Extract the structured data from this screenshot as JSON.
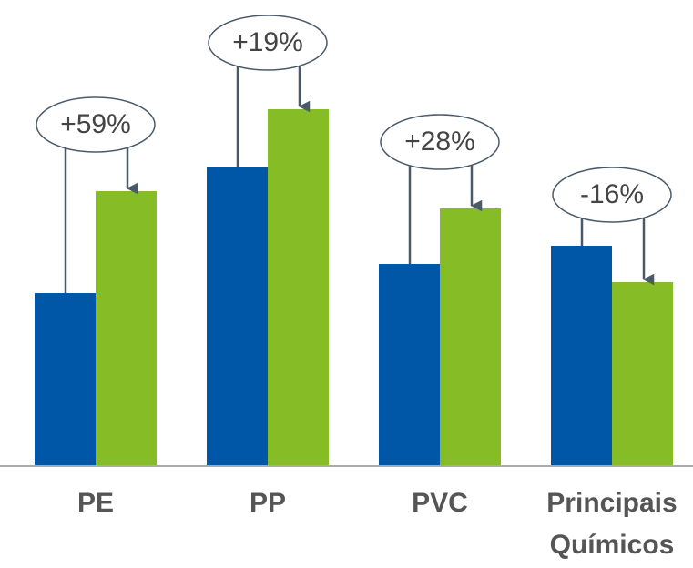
{
  "chart_data": {
    "type": "bar",
    "categories": [
      "PE",
      "PP",
      "PVC",
      "Principais Químicos"
    ],
    "series": [
      {
        "color": "#0057a8",
        "values": [
          190,
          328,
          222,
          242
        ]
      },
      {
        "color": "#86bc25",
        "values": [
          302,
          392,
          283,
          202
        ]
      }
    ],
    "annotations": [
      "+59%",
      "+19%",
      "+28%",
      "-16%"
    ],
    "ylim": [
      0,
      420
    ]
  }
}
